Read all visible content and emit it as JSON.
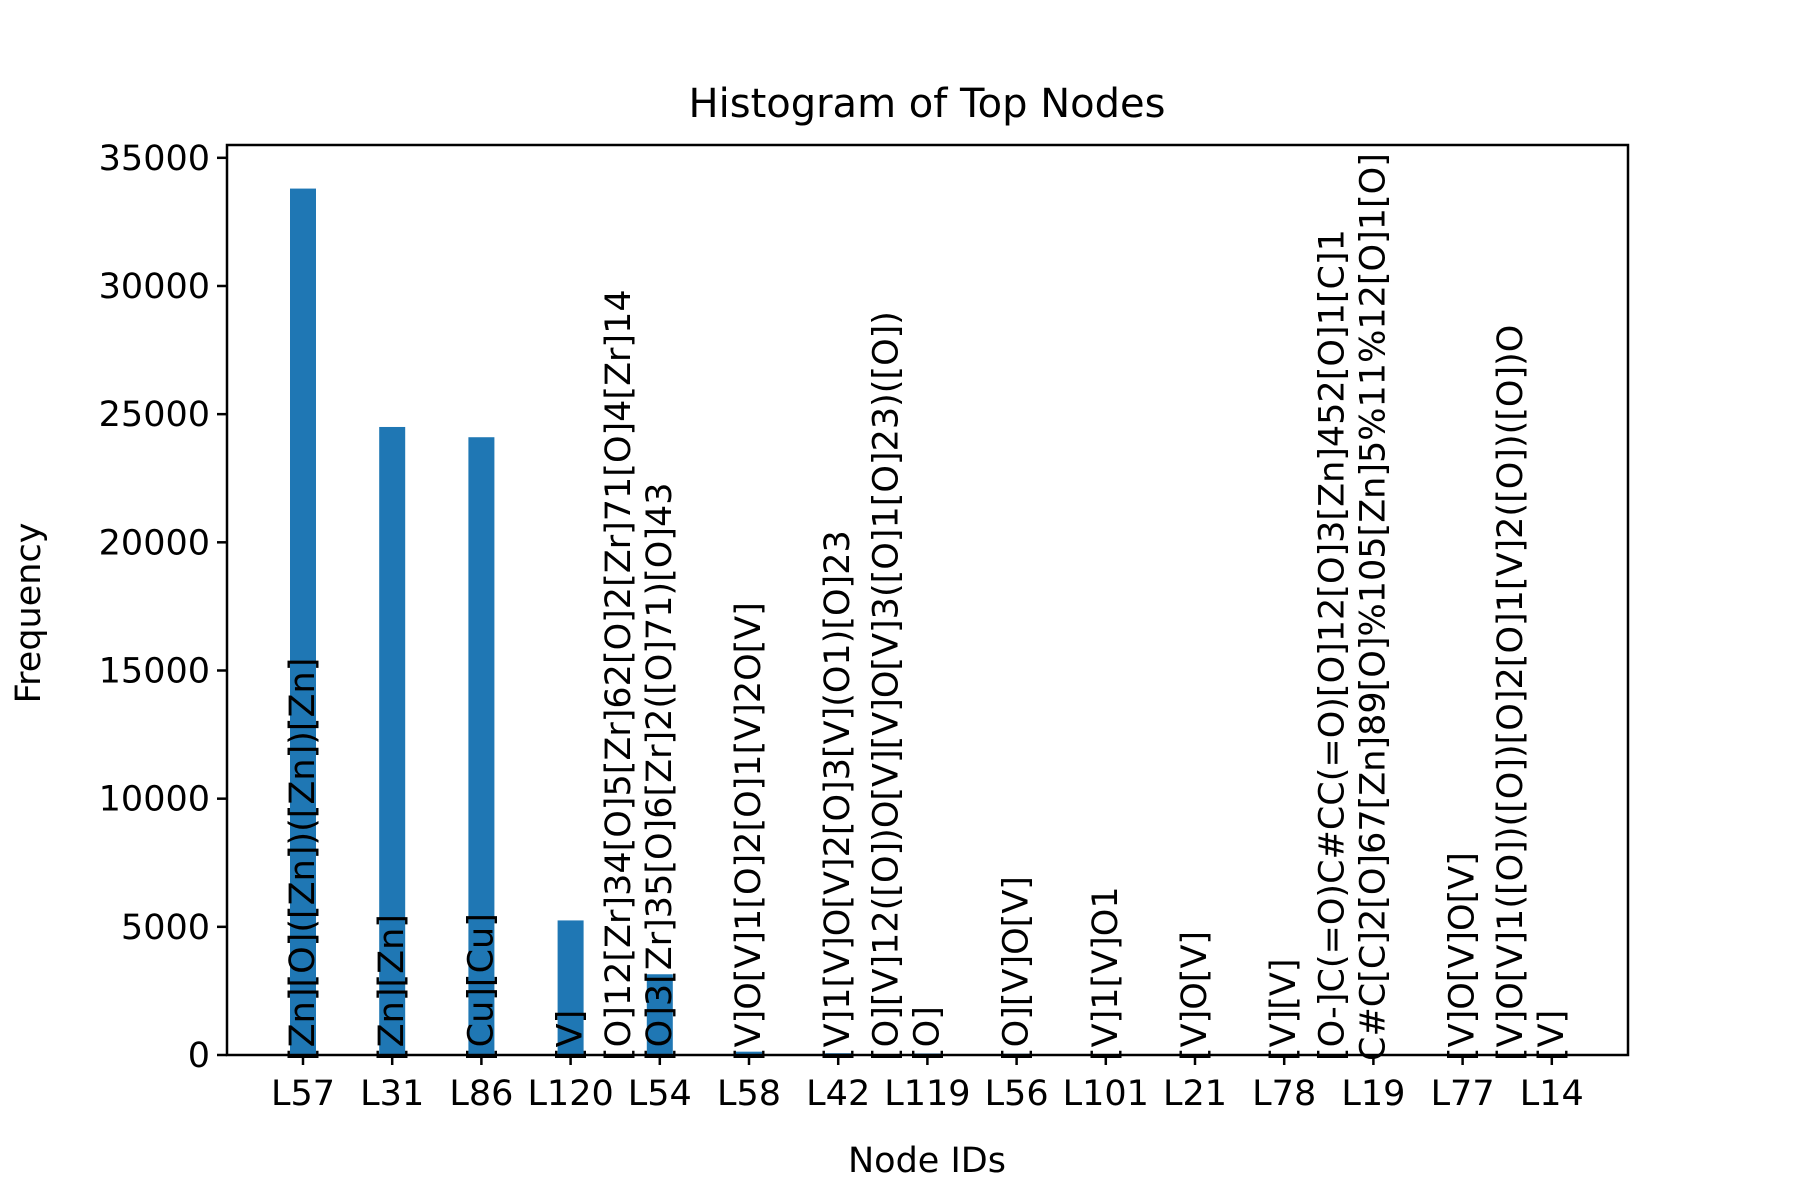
{
  "chart_data": {
    "type": "bar",
    "title": "Histogram of Top Nodes",
    "xlabel": "Node IDs",
    "ylabel": "Frequency",
    "ylim": [
      0,
      35500
    ],
    "yticks": [
      0,
      5000,
      10000,
      15000,
      20000,
      25000,
      30000,
      35000
    ],
    "grid": false,
    "legend": "none",
    "bar_color": "#1f77b4",
    "categories": [
      "L57",
      "L31",
      "L86",
      "L120",
      "L54",
      "L58",
      "L42",
      "L119",
      "L56",
      "L101",
      "L21",
      "L78",
      "L19",
      "L77",
      "L14"
    ],
    "values": [
      33800,
      24500,
      24100,
      5250,
      3150,
      130,
      70,
      60,
      50,
      40,
      30,
      30,
      30,
      20,
      20
    ],
    "bar_labels": [
      [
        "[Zn][O]([Zn])([Zn])[Zn]"
      ],
      [
        "[Zn][Zn]"
      ],
      [
        "[Cu][Cu]"
      ],
      [
        "[V]"
      ],
      [
        "[O]12[Zr]34[O]5[Zr]62[O]2[Zr]71[O]4[Zr]14",
        "[O]3[Zr]35[O]6[Zr]2([O]71)[O]43"
      ],
      [
        "[V]O[V]1[O]2[O]1[V]2O[V]"
      ],
      [
        "[V]1[V]O[V]2[O]3[V](O1)[O]23"
      ],
      [
        "[O][V]12([O])O[V][V]O[V]3([O]1[O]23)([O])",
        "[O]"
      ],
      [
        "[O][V]O[V]"
      ],
      [
        "[V]1[V]O1"
      ],
      [
        "[V]O[V]"
      ],
      [
        "[V][V]"
      ],
      [
        "[O-]C(=O)C#CC(=O)[O]12[O]3[Zn]452[O]1[C]1",
        "C#C[C]2[O]67[Zn]89[O]%105[Zn]5%11%12[O]1[O]"
      ],
      [
        "[V]O[V]O[V]"
      ],
      [
        "[V]O[V]1([O])([O])[O]2[O]1[V]2([O])([O])O",
        "[V]"
      ]
    ]
  }
}
